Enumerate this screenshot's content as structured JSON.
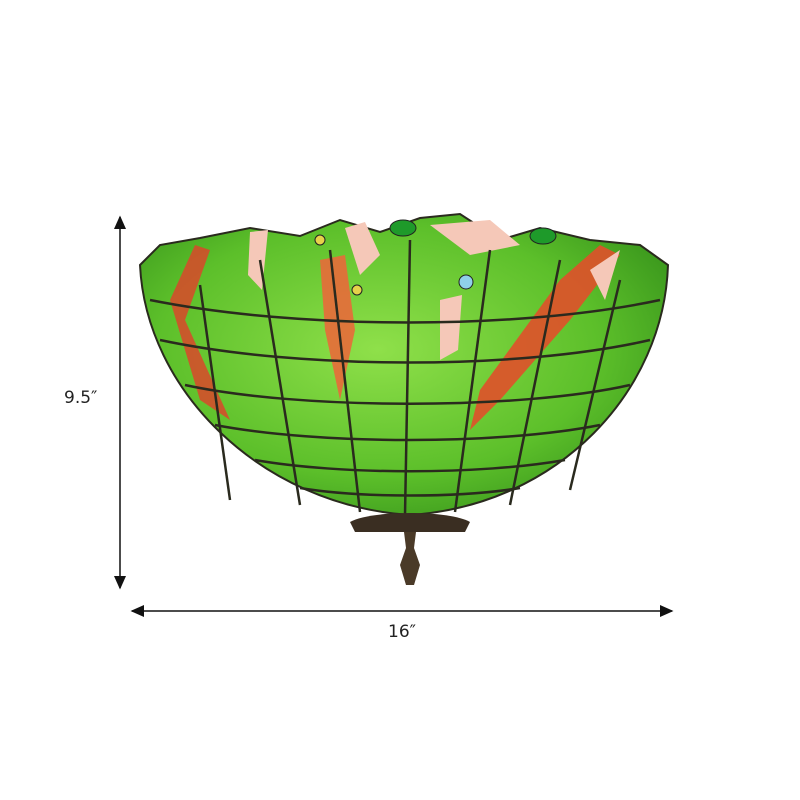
{
  "dimensions": {
    "height_label": "9.5″",
    "width_label": "16″"
  },
  "product": {
    "colors": {
      "glass_green": "#5cbf2a",
      "glass_orange": "#e0502a",
      "glass_pink": "#f5c8b8",
      "lead_lines": "#2a2a1e",
      "metal": "#3a2e22"
    }
  }
}
